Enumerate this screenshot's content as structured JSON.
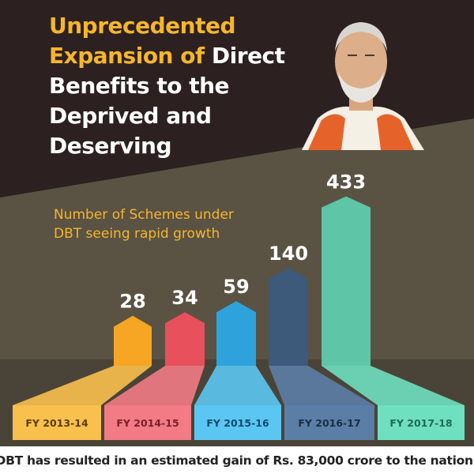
{
  "title": {
    "line1": "Unprecedented",
    "line2_yellow": "Expansion of",
    "line2_white": "Direct",
    "line3": "Benefits to the",
    "line4": "Deprived and",
    "line5": "Deserving"
  },
  "subtitle": "Number of Schemes under DBT seeing rapid growth",
  "footer": "DBT has resulted in an estimated gain of Rs. 83,000 crore to the nation!",
  "colors": {
    "background_dark": "#2c2120",
    "background_olive": "#5a5243",
    "title_accent": "#f6b62c"
  },
  "chart_data": {
    "type": "bar",
    "categories": [
      "FY 2013-14",
      "FY 2014-15",
      "FY 2015-16",
      "FY 2016-17",
      "FY 2017-18"
    ],
    "values": [
      28,
      34,
      59,
      140,
      433
    ],
    "bar_colors": [
      "#f6a623",
      "#e8505b",
      "#2ea3db",
      "#3d5a7a",
      "#5ec5a6"
    ],
    "label_bg_colors": [
      "#f9c04e",
      "#f27b86",
      "#5bc6f2",
      "#5b7ea6",
      "#6fe0bf"
    ],
    "label_text_colors": [
      "#5a3b00",
      "#7a1f28",
      "#0d4a6e",
      "#1a2d44",
      "#1e6a55"
    ]
  }
}
